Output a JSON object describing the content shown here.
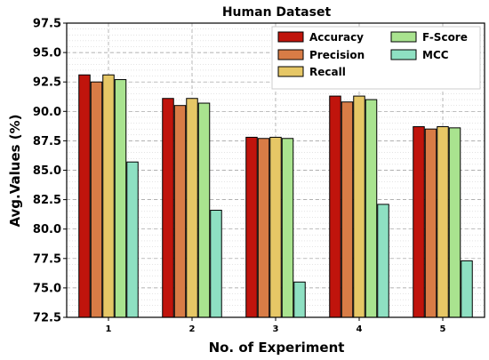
{
  "chart_data": {
    "type": "bar",
    "title": "Human Dataset",
    "xlabel": "No. of Experiment",
    "ylabel": "Avg.Values (%)",
    "categories": [
      "1",
      "2",
      "3",
      "4",
      "5"
    ],
    "ylim": [
      72.5,
      97.5
    ],
    "yticks": [
      "72.5",
      "75.0",
      "77.5",
      "80.0",
      "82.5",
      "85.0",
      "87.5",
      "90.0",
      "92.5",
      "95.0",
      "97.5"
    ],
    "grid": true,
    "legend_position": "top-right",
    "series": [
      {
        "name": "Accuracy",
        "color": "#c0140c",
        "values": [
          93.1,
          91.1,
          87.8,
          91.3,
          88.7
        ]
      },
      {
        "name": "Precision",
        "color": "#d87c46",
        "values": [
          92.5,
          90.5,
          87.7,
          90.8,
          88.5
        ]
      },
      {
        "name": "Recall",
        "color": "#e6c766",
        "values": [
          93.1,
          91.1,
          87.8,
          91.3,
          88.7
        ]
      },
      {
        "name": "F-Score",
        "color": "#a9e38f",
        "values": [
          92.7,
          90.7,
          87.7,
          91.0,
          88.6
        ]
      },
      {
        "name": "MCC",
        "color": "#8ee0c2",
        "values": [
          85.7,
          81.6,
          75.5,
          82.1,
          77.3
        ]
      }
    ]
  }
}
